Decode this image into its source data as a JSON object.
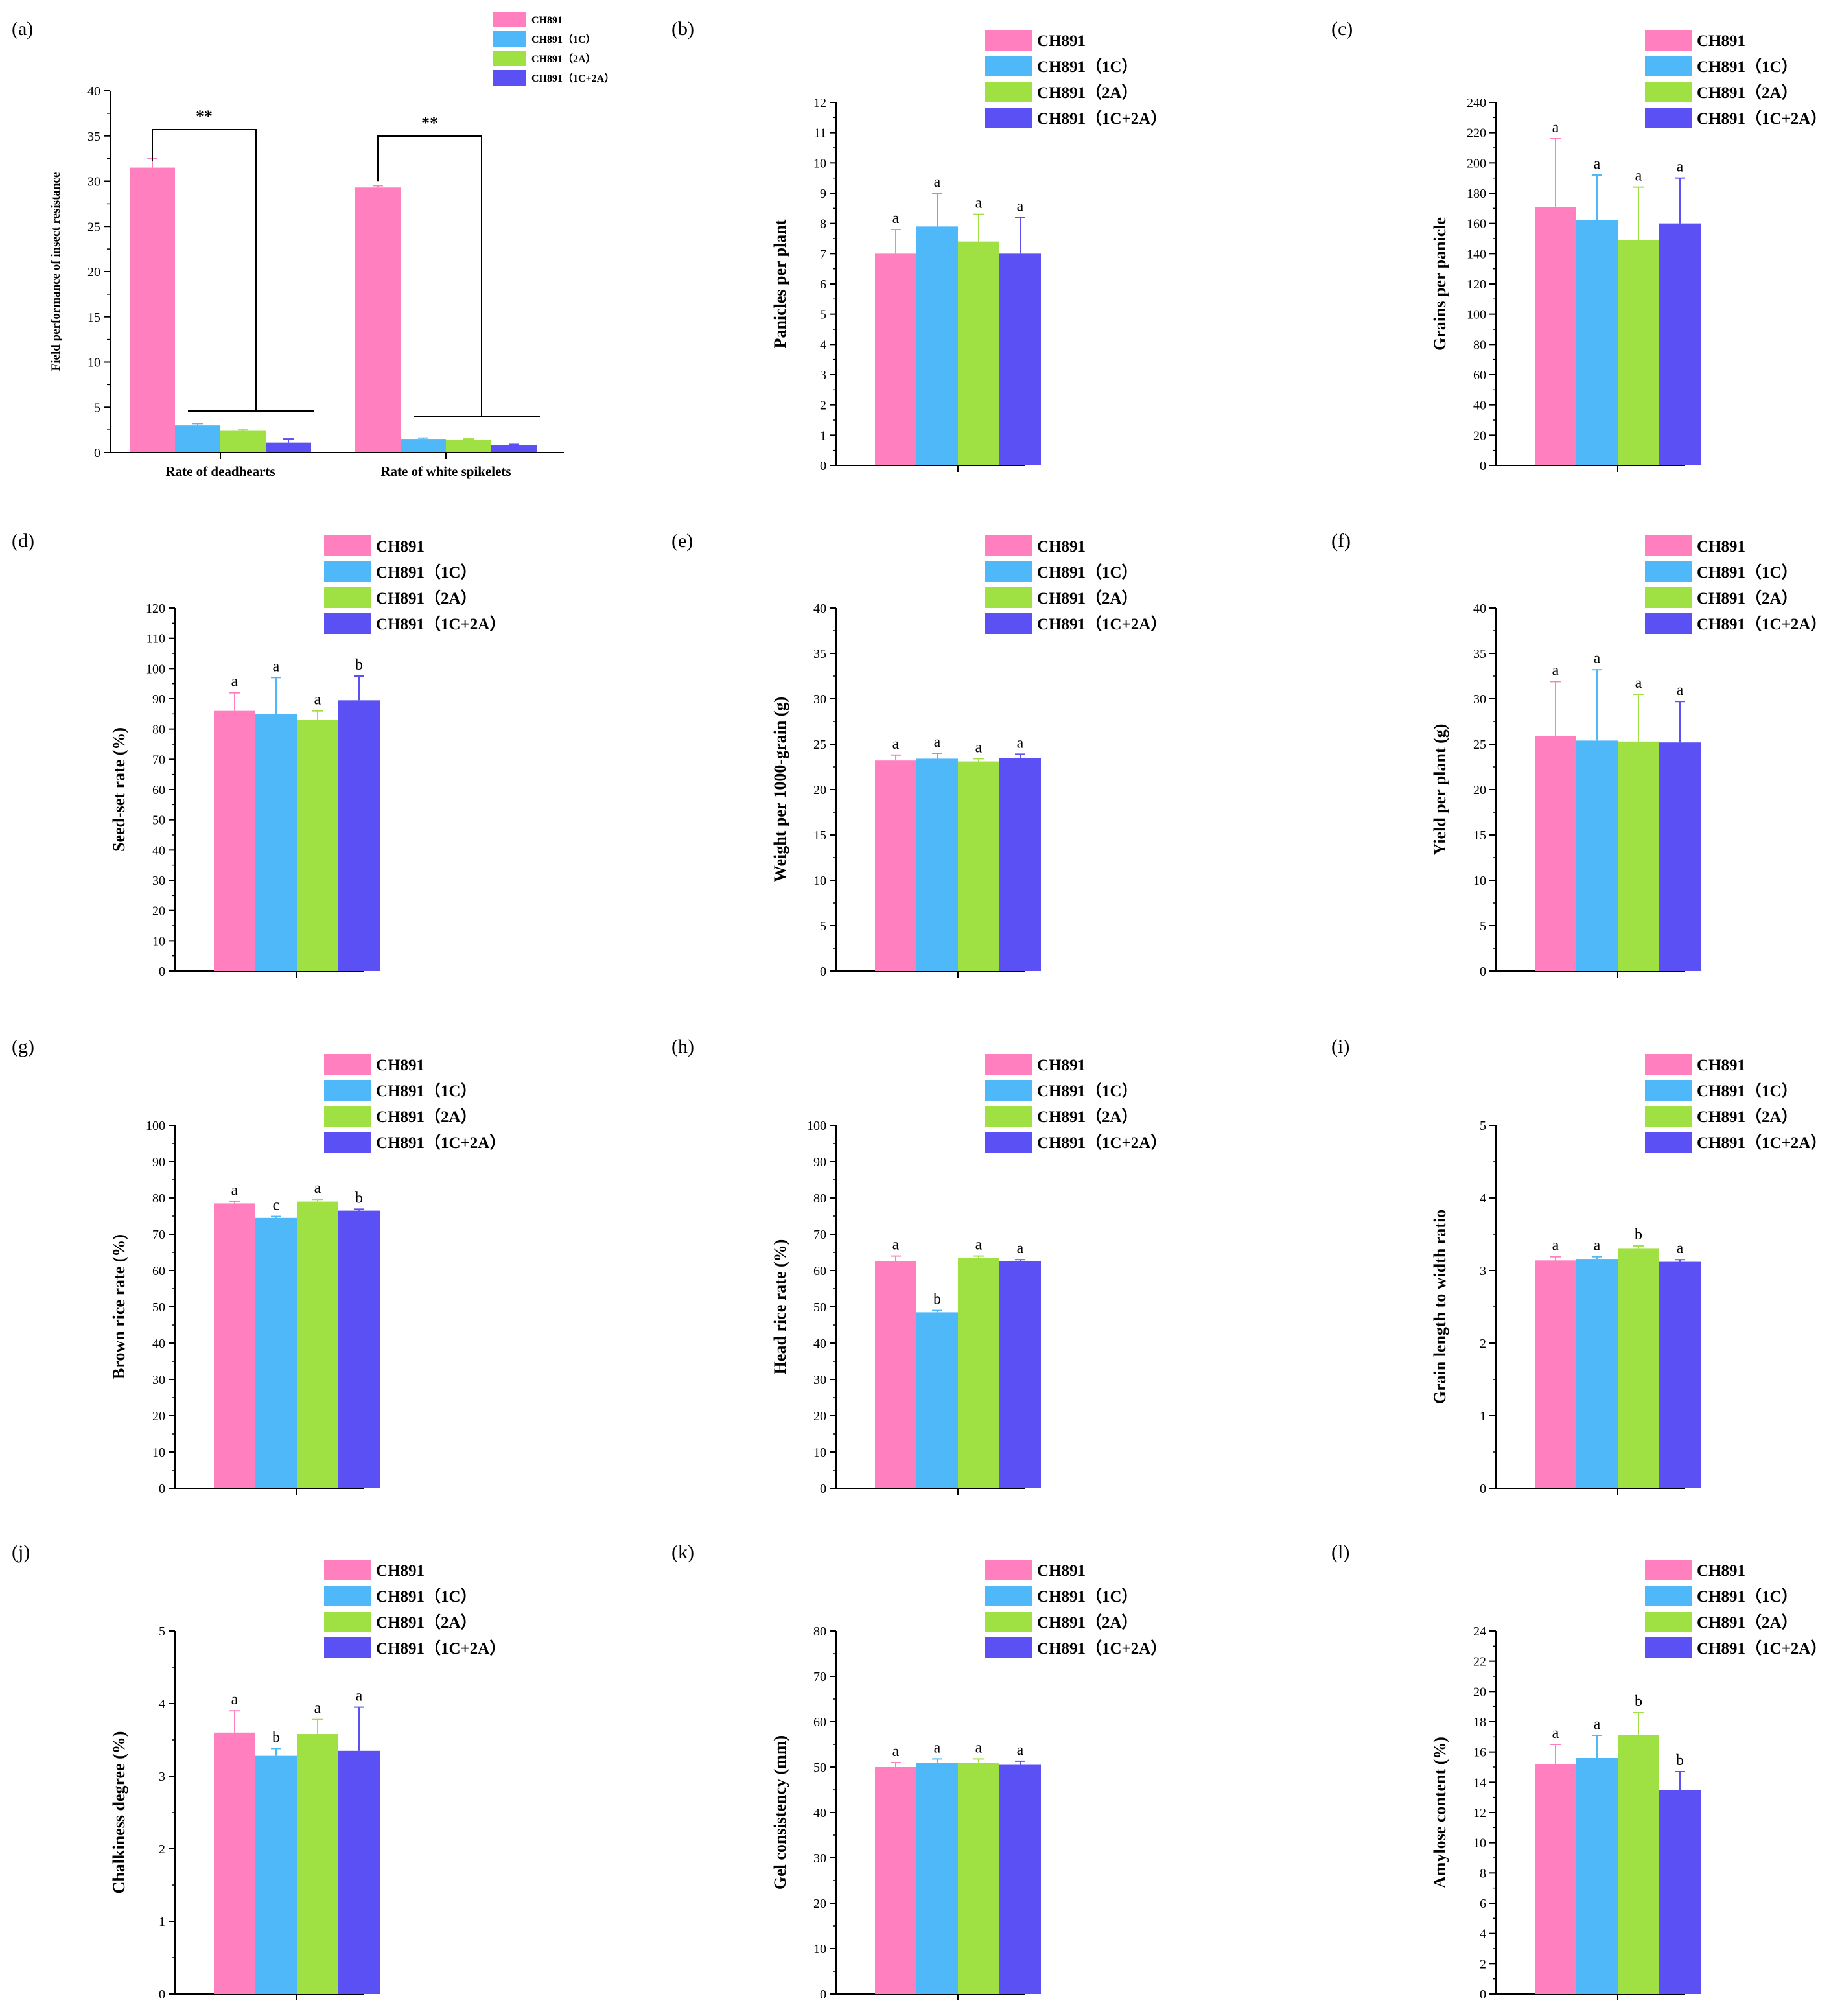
{
  "figure": {
    "series_names": [
      "CH891",
      "CH891（1C）",
      "CH891（2A）",
      "CH891（1C+2A）"
    ],
    "series_colors": [
      "#ff7fbf",
      "#4fb8f8",
      "#9fe043",
      "#5b50f3"
    ]
  },
  "chart_data": [
    {
      "panel": "(a)",
      "type": "bar",
      "ylabel": "Field performance of insect resistance",
      "categories": [
        "Rate of deadhearts",
        "Rate of white spikelets"
      ],
      "ylim": [
        0,
        40
      ],
      "yticks": [
        0,
        5,
        10,
        15,
        20,
        25,
        30,
        35,
        40
      ],
      "series": [
        {
          "name": "CH891",
          "values": [
            31.5,
            29.3
          ],
          "errors": [
            1.0,
            0.2
          ]
        },
        {
          "name": "CH891（1C）",
          "values": [
            3.0,
            1.5
          ],
          "errors": [
            0.2,
            0.1
          ]
        },
        {
          "name": "CH891（2A）",
          "values": [
            2.4,
            1.4
          ],
          "errors": [
            0.1,
            0.1
          ]
        },
        {
          "name": "CH891（1C+2A）",
          "values": [
            1.1,
            0.8
          ],
          "errors": [
            0.4,
            0.1
          ]
        }
      ],
      "significance": [
        "**",
        "**"
      ]
    },
    {
      "panel": "(b)",
      "type": "bar",
      "ylabel": "Panicles per plant",
      "ylim": [
        0,
        12
      ],
      "yticks": [
        0,
        1,
        2,
        3,
        4,
        5,
        6,
        7,
        8,
        9,
        10,
        11,
        12
      ],
      "values": [
        7.0,
        7.9,
        7.4,
        7.0
      ],
      "errors": [
        0.8,
        1.1,
        0.9,
        1.2
      ],
      "letters": [
        "a",
        "a",
        "a",
        "a"
      ]
    },
    {
      "panel": "(c)",
      "type": "bar",
      "ylabel": "Grains per panicle",
      "ylim": [
        0,
        240
      ],
      "yticks": [
        0,
        20,
        40,
        60,
        80,
        100,
        120,
        140,
        160,
        180,
        200,
        220,
        240
      ],
      "values": [
        171,
        162,
        149,
        160
      ],
      "errors": [
        45,
        30,
        35,
        30
      ],
      "letters": [
        "a",
        "a",
        "a",
        "a"
      ]
    },
    {
      "panel": "(d)",
      "type": "bar",
      "ylabel": "Seed-set rate (%)",
      "ylim": [
        0,
        120
      ],
      "yticks": [
        0,
        10,
        20,
        30,
        40,
        50,
        60,
        70,
        80,
        90,
        100,
        110,
        120
      ],
      "values": [
        86,
        85,
        83,
        89.5
      ],
      "errors": [
        6,
        12,
        3,
        8
      ],
      "letters": [
        "a",
        "a",
        "a",
        "b"
      ]
    },
    {
      "panel": "(e)",
      "type": "bar",
      "ylabel": "Weight per 1000-grain (g)",
      "ylim": [
        0,
        40
      ],
      "yticks": [
        0,
        5,
        10,
        15,
        20,
        25,
        30,
        35,
        40
      ],
      "values": [
        23.2,
        23.4,
        23.1,
        23.5
      ],
      "errors": [
        0.6,
        0.6,
        0.3,
        0.4
      ],
      "letters": [
        "a",
        "a",
        "a",
        "a"
      ]
    },
    {
      "panel": "(f)",
      "type": "bar",
      "ylabel": "Yield per plant (g)",
      "ylim": [
        0,
        40
      ],
      "yticks": [
        0,
        5,
        10,
        15,
        20,
        25,
        30,
        35,
        40
      ],
      "values": [
        25.9,
        25.4,
        25.3,
        25.2
      ],
      "errors": [
        6.0,
        7.8,
        5.2,
        4.5
      ],
      "letters": [
        "a",
        "a",
        "a",
        "a"
      ]
    },
    {
      "panel": "(g)",
      "type": "bar",
      "ylabel": "Brown rice rate (%)",
      "ylim": [
        0,
        100
      ],
      "yticks": [
        0,
        10,
        20,
        30,
        40,
        50,
        60,
        70,
        80,
        90,
        100
      ],
      "values": [
        78.5,
        74.5,
        79.0,
        76.5
      ],
      "errors": [
        0.5,
        0.4,
        0.6,
        0.4
      ],
      "letters": [
        "a",
        "c",
        "a",
        "b"
      ]
    },
    {
      "panel": "(h)",
      "type": "bar",
      "ylabel": "Head rice rate (%)",
      "ylim": [
        0,
        100
      ],
      "yticks": [
        0,
        10,
        20,
        30,
        40,
        50,
        60,
        70,
        80,
        90,
        100
      ],
      "values": [
        62.5,
        48.5,
        63.5,
        62.5
      ],
      "errors": [
        1.5,
        0.5,
        0.5,
        0.5
      ],
      "letters": [
        "a",
        "b",
        "a",
        "a"
      ]
    },
    {
      "panel": "(i)",
      "type": "bar",
      "ylabel": "Grain length to width ratio",
      "ylim": [
        0,
        5
      ],
      "yticks": [
        0,
        1,
        2,
        3,
        4,
        5
      ],
      "values": [
        3.14,
        3.16,
        3.3,
        3.12
      ],
      "errors": [
        0.05,
        0.03,
        0.04,
        0.03
      ],
      "letters": [
        "a",
        "a",
        "b",
        "a"
      ]
    },
    {
      "panel": "(j)",
      "type": "bar",
      "ylabel": "Chalkiness degree (%)",
      "ylim": [
        0,
        5
      ],
      "yticks": [
        0,
        1,
        2,
        3,
        4,
        5
      ],
      "values": [
        3.6,
        3.28,
        3.58,
        3.35
      ],
      "errors": [
        0.3,
        0.1,
        0.2,
        0.6
      ],
      "letters": [
        "a",
        "b",
        "a",
        "a"
      ]
    },
    {
      "panel": "(k)",
      "type": "bar",
      "ylabel": "Gel consistency (mm)",
      "ylim": [
        0,
        80
      ],
      "yticks": [
        0,
        10,
        20,
        30,
        40,
        50,
        60,
        70,
        80
      ],
      "values": [
        50,
        51,
        51,
        50.5
      ],
      "errors": [
        1.0,
        0.8,
        0.8,
        0.8
      ],
      "letters": [
        "a",
        "a",
        "a",
        "a"
      ]
    },
    {
      "panel": "(l)",
      "type": "bar",
      "ylabel": "Amylose content (%)",
      "ylim": [
        0,
        24
      ],
      "yticks": [
        0,
        2,
        4,
        6,
        8,
        10,
        12,
        14,
        16,
        18,
        20,
        22,
        24
      ],
      "values": [
        15.2,
        15.6,
        17.1,
        13.5
      ],
      "errors": [
        1.3,
        1.5,
        1.5,
        1.2
      ],
      "letters": [
        "a",
        "a",
        "b",
        "b"
      ]
    }
  ]
}
